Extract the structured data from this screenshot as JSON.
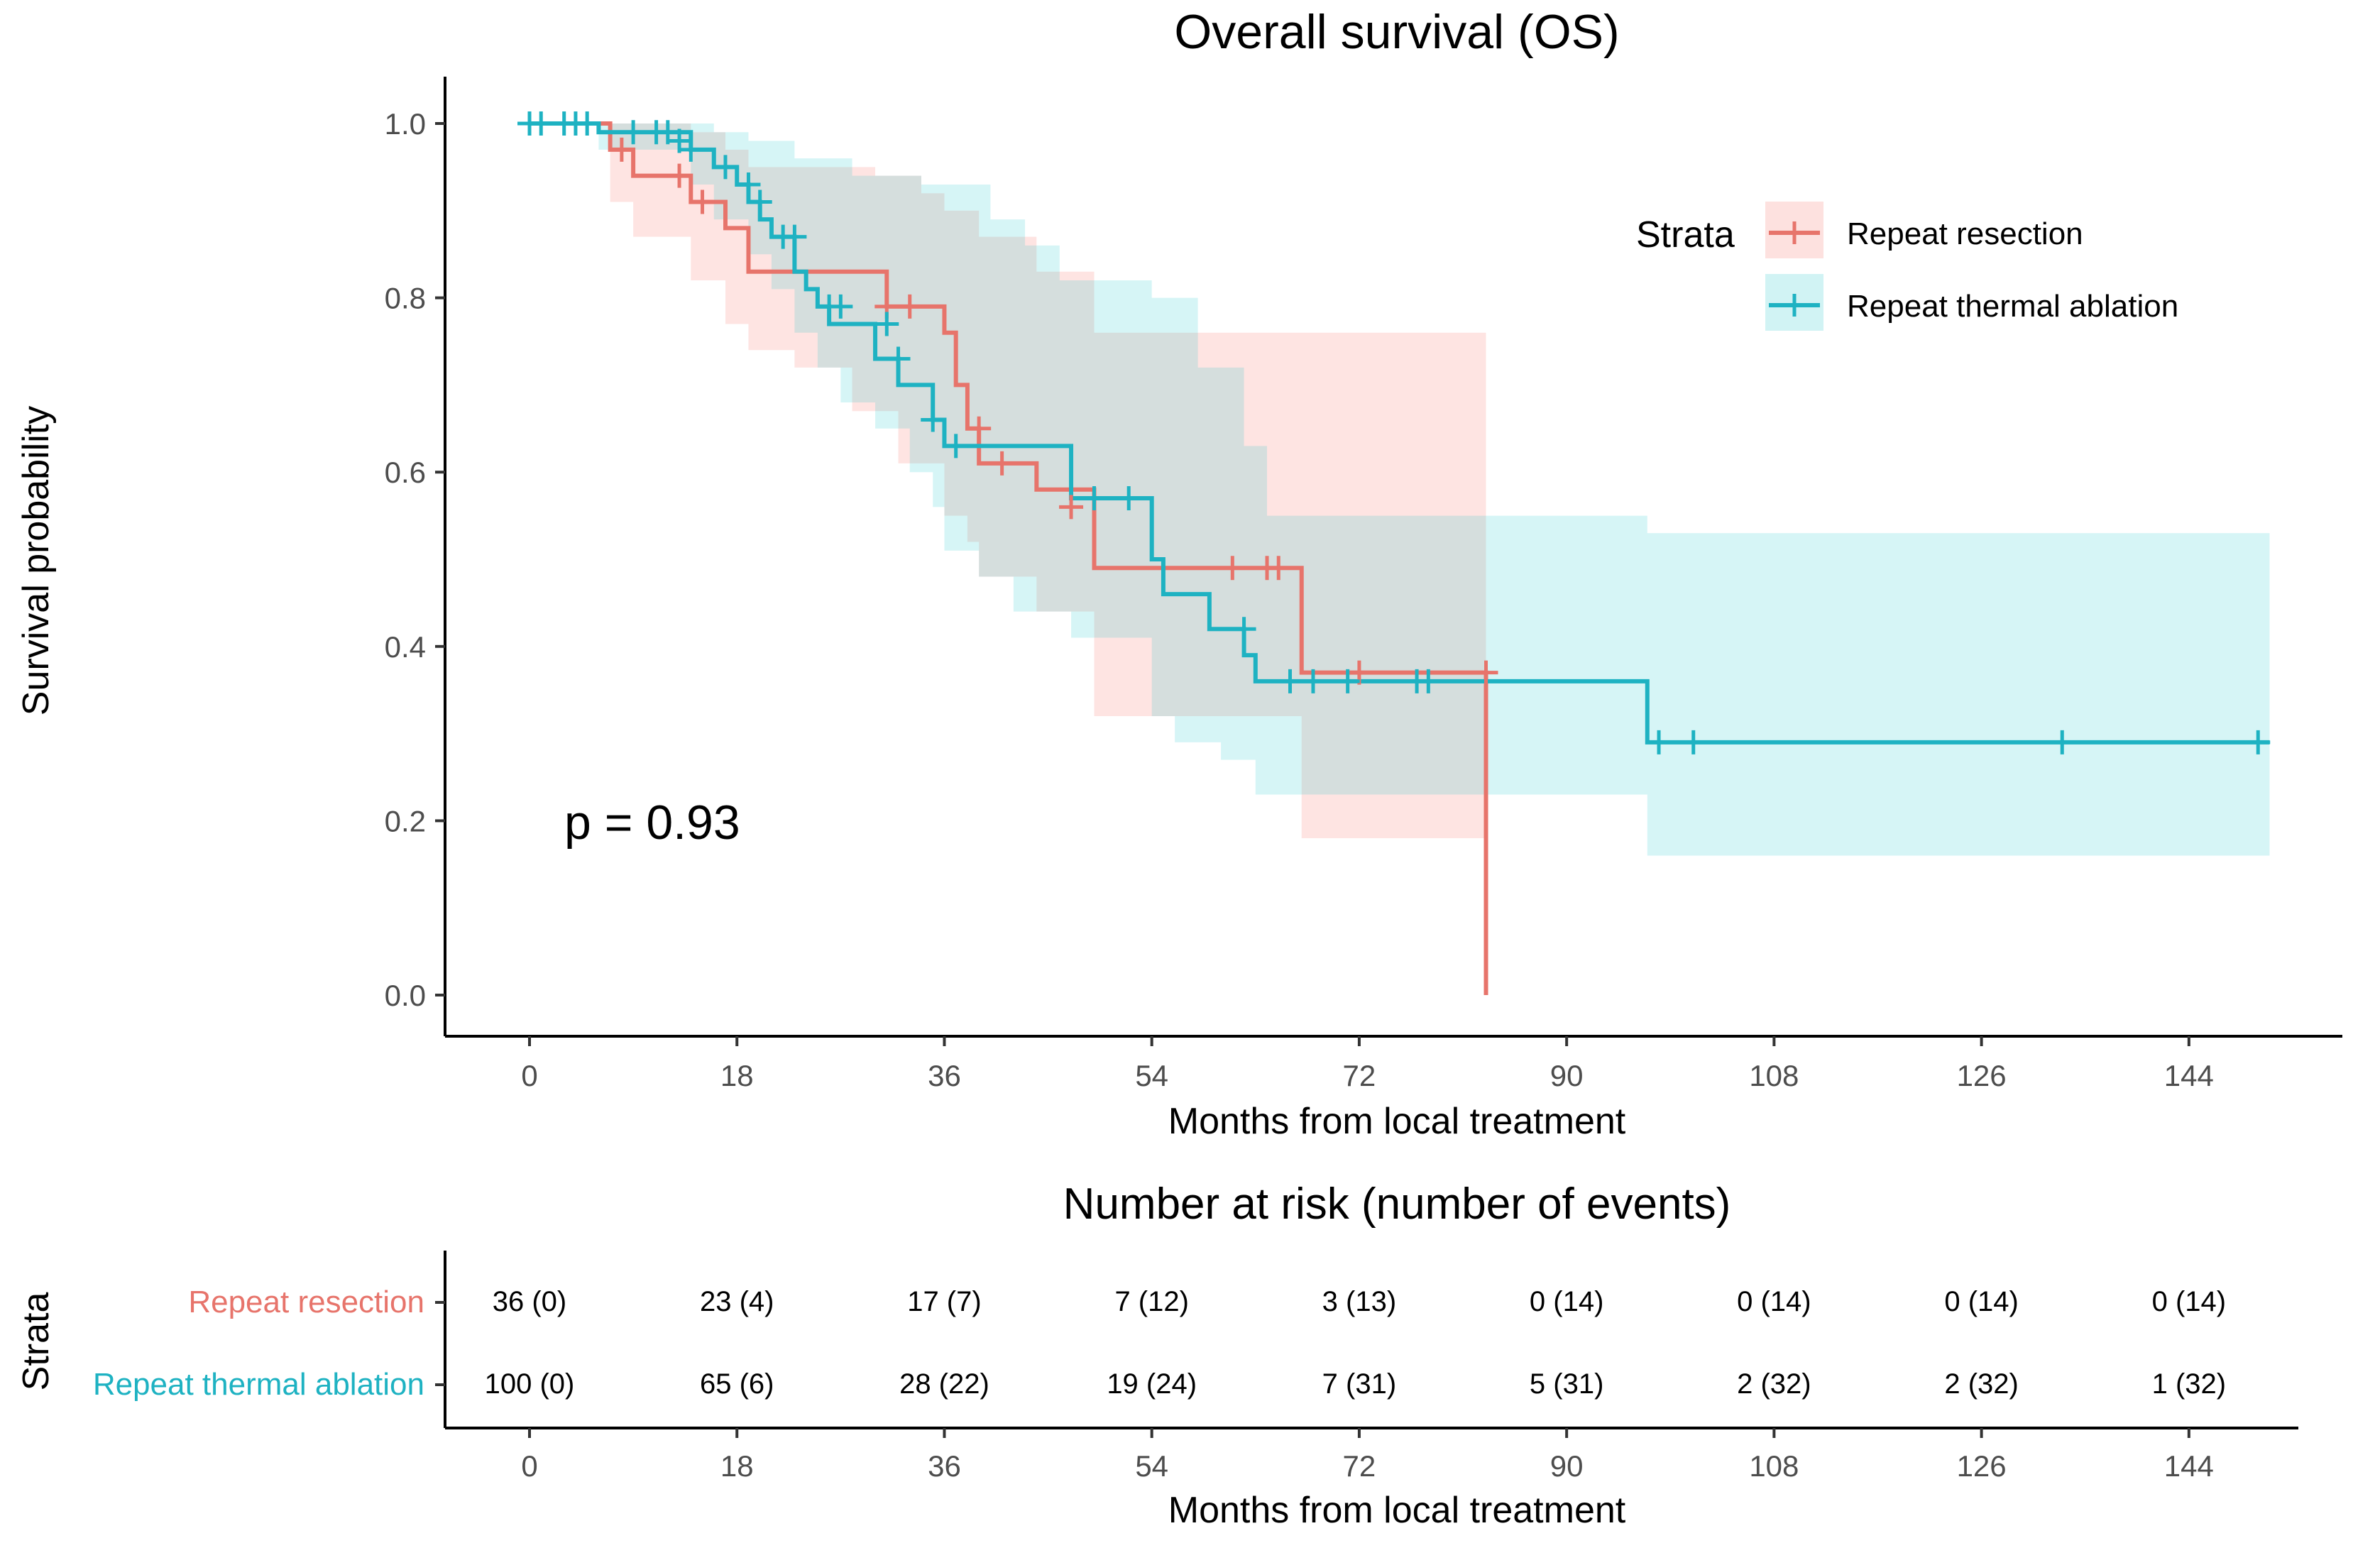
{
  "chart_data": {
    "type": "line",
    "subtype": "kaplan-meier",
    "title": "Overall survival (OS)",
    "xlabel": "Months from local treatment",
    "ylabel": "Survival probability",
    "xlim": [
      -6,
      156
    ],
    "ylim": [
      -0.05,
      1.055
    ],
    "x_ticks": [
      0,
      18,
      36,
      54,
      72,
      90,
      108,
      126,
      144
    ],
    "y_ticks": [
      0.0,
      0.2,
      0.4,
      0.6,
      0.8,
      1.0
    ],
    "y_tick_labels": [
      "0.0",
      "0.2",
      "0.4",
      "0.6",
      "0.8",
      "1.0"
    ],
    "p_value_text": "p = 0.93",
    "legend": {
      "title": "Strata",
      "position": "top-right",
      "entries": [
        "Repeat resection",
        "Repeat thermal ablation"
      ]
    },
    "series": [
      {
        "name": "Repeat resection",
        "color": "#E7746B",
        "band_color": "#F8766D",
        "steps": [
          [
            0,
            1.0
          ],
          [
            7,
            0.97
          ],
          [
            9,
            0.94
          ],
          [
            14,
            0.91
          ],
          [
            17,
            0.88
          ],
          [
            19,
            0.83
          ],
          [
            31,
            0.79
          ],
          [
            36,
            0.76
          ],
          [
            37,
            0.7
          ],
          [
            38,
            0.65
          ],
          [
            39,
            0.61
          ],
          [
            44,
            0.58
          ],
          [
            49,
            0.49
          ],
          [
            67,
            0.37
          ],
          [
            83,
            0.37
          ],
          [
            83,
            0.0
          ]
        ],
        "upper": [
          [
            0,
            1.0
          ],
          [
            7,
            1.0
          ],
          [
            9,
            1.0
          ],
          [
            14,
            0.99
          ],
          [
            17,
            0.97
          ],
          [
            19,
            0.95
          ],
          [
            30,
            0.94
          ],
          [
            34,
            0.92
          ],
          [
            36,
            0.9
          ],
          [
            39,
            0.87
          ],
          [
            44,
            0.83
          ],
          [
            49,
            0.76
          ],
          [
            83,
            0.76
          ]
        ],
        "lower": [
          [
            0,
            1.0
          ],
          [
            7,
            0.91
          ],
          [
            9,
            0.87
          ],
          [
            14,
            0.82
          ],
          [
            17,
            0.77
          ],
          [
            19,
            0.74
          ],
          [
            23,
            0.72
          ],
          [
            28,
            0.67
          ],
          [
            32,
            0.61
          ],
          [
            36,
            0.55
          ],
          [
            38,
            0.52
          ],
          [
            39,
            0.48
          ],
          [
            44,
            0.44
          ],
          [
            49,
            0.39
          ],
          [
            49,
            0.32
          ],
          [
            67,
            0.18
          ],
          [
            83,
            0.18
          ]
        ],
        "censor": [
          [
            8,
            0.97
          ],
          [
            13,
            0.94
          ],
          [
            15,
            0.91
          ],
          [
            31,
            0.79
          ],
          [
            33,
            0.79
          ],
          [
            39,
            0.65
          ],
          [
            41,
            0.61
          ],
          [
            47,
            0.56
          ],
          [
            61,
            0.49
          ],
          [
            64,
            0.49
          ],
          [
            65,
            0.49
          ],
          [
            72,
            0.37
          ],
          [
            83,
            0.37
          ]
        ]
      },
      {
        "name": "Repeat thermal ablation",
        "color": "#1EB2C2",
        "band_color": "#00BFC4",
        "steps": [
          [
            0,
            1.0
          ],
          [
            6,
            0.99
          ],
          [
            14,
            0.97
          ],
          [
            16,
            0.95
          ],
          [
            18,
            0.93
          ],
          [
            19,
            0.91
          ],
          [
            20,
            0.89
          ],
          [
            21,
            0.87
          ],
          [
            23,
            0.83
          ],
          [
            24,
            0.81
          ],
          [
            25,
            0.79
          ],
          [
            26,
            0.77
          ],
          [
            30,
            0.73
          ],
          [
            32,
            0.7
          ],
          [
            35,
            0.66
          ],
          [
            36,
            0.63
          ],
          [
            47,
            0.57
          ],
          [
            54,
            0.5
          ],
          [
            55,
            0.46
          ],
          [
            59,
            0.42
          ],
          [
            62,
            0.39
          ],
          [
            63,
            0.36
          ],
          [
            97,
            0.36
          ],
          [
            97,
            0.29
          ],
          [
            151,
            0.29
          ]
        ],
        "upper": [
          [
            0,
            1.0
          ],
          [
            13,
            1.0
          ],
          [
            16,
            0.99
          ],
          [
            19,
            0.98
          ],
          [
            23,
            0.96
          ],
          [
            28,
            0.94
          ],
          [
            34,
            0.93
          ],
          [
            40,
            0.89
          ],
          [
            43,
            0.86
          ],
          [
            46,
            0.82
          ],
          [
            54,
            0.8
          ],
          [
            58,
            0.72
          ],
          [
            62,
            0.63
          ],
          [
            64,
            0.55
          ],
          [
            97,
            0.55
          ],
          [
            97,
            0.53
          ],
          [
            151,
            0.53
          ]
        ],
        "lower": [
          [
            0,
            1.0
          ],
          [
            6,
            0.97
          ],
          [
            14,
            0.93
          ],
          [
            16,
            0.89
          ],
          [
            19,
            0.85
          ],
          [
            21,
            0.81
          ],
          [
            23,
            0.76
          ],
          [
            25,
            0.72
          ],
          [
            27,
            0.68
          ],
          [
            30,
            0.65
          ],
          [
            33,
            0.6
          ],
          [
            35,
            0.56
          ],
          [
            36,
            0.51
          ],
          [
            39,
            0.48
          ],
          [
            42,
            0.44
          ],
          [
            47,
            0.41
          ],
          [
            54,
            0.32
          ],
          [
            56,
            0.29
          ],
          [
            60,
            0.27
          ],
          [
            63,
            0.23
          ],
          [
            97,
            0.23
          ],
          [
            97,
            0.16
          ],
          [
            151,
            0.16
          ]
        ],
        "censor": [
          [
            0,
            1.0
          ],
          [
            1,
            1.0
          ],
          [
            3,
            1.0
          ],
          [
            4,
            1.0
          ],
          [
            5,
            1.0
          ],
          [
            9,
            0.99
          ],
          [
            11,
            0.99
          ],
          [
            12,
            0.99
          ],
          [
            13,
            0.98
          ],
          [
            14,
            0.97
          ],
          [
            17,
            0.95
          ],
          [
            19,
            0.93
          ],
          [
            20,
            0.91
          ],
          [
            22,
            0.87
          ],
          [
            23,
            0.87
          ],
          [
            26,
            0.79
          ],
          [
            27,
            0.79
          ],
          [
            31,
            0.77
          ],
          [
            32,
            0.73
          ],
          [
            35,
            0.66
          ],
          [
            37,
            0.63
          ],
          [
            49,
            0.57
          ],
          [
            52,
            0.57
          ],
          [
            62,
            0.42
          ],
          [
            66,
            0.36
          ],
          [
            68,
            0.36
          ],
          [
            71,
            0.36
          ],
          [
            77,
            0.36
          ],
          [
            78,
            0.36
          ],
          [
            98,
            0.29
          ],
          [
            101,
            0.29
          ],
          [
            133,
            0.29
          ],
          [
            150,
            0.29
          ]
        ]
      }
    ],
    "risk_table": {
      "title": "Number at risk (number of events)",
      "ylabel": "Strata",
      "xlabel": "Months from local treatment",
      "rows": [
        {
          "label": "Repeat resection",
          "color": "#E7746B",
          "cells": [
            "36 (0)",
            "23 (4)",
            "17 (7)",
            "7 (12)",
            "3 (13)",
            "0 (14)",
            "0 (14)",
            "0 (14)",
            "0 (14)"
          ]
        },
        {
          "label": "Repeat thermal ablation",
          "color": "#1EB2C2",
          "cells": [
            "100 (0)",
            "65 (6)",
            "28 (22)",
            "19 (24)",
            "7 (31)",
            "5 (31)",
            "2 (32)",
            "2 (32)",
            "1 (32)"
          ]
        }
      ]
    }
  }
}
